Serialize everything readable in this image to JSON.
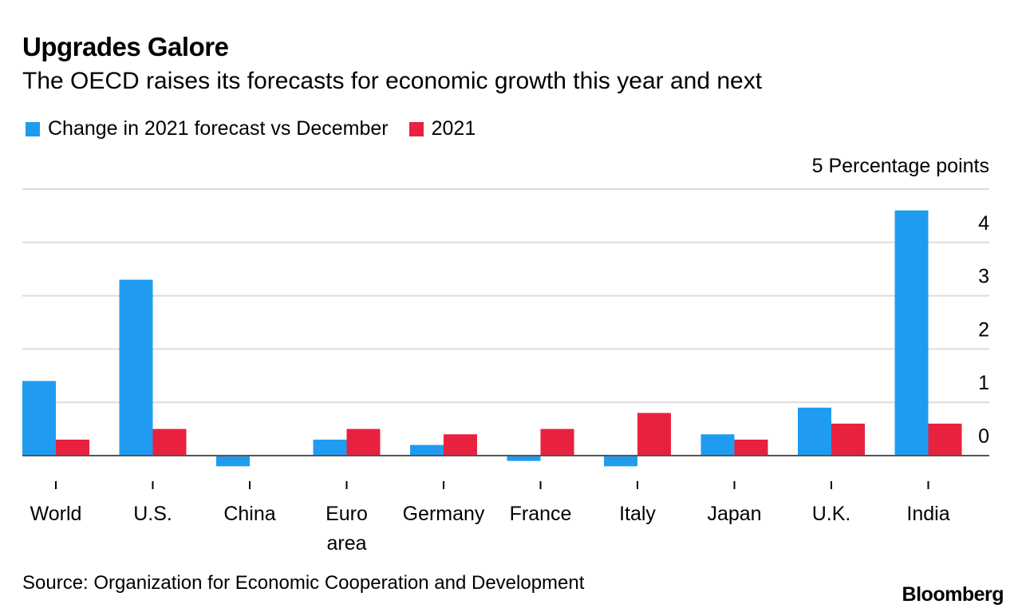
{
  "title": "Upgrades Galore",
  "subtitle": "The OECD raises its forecasts for economic growth this year and next",
  "legend": [
    {
      "label": "Change in 2021 forecast vs December",
      "color": "#1f9cf0"
    },
    {
      "label": "2021",
      "color": "#e8213f"
    }
  ],
  "source": "Source: Organization for Economic Cooperation and Development",
  "brand": "Bloomberg",
  "chart_data": {
    "type": "bar",
    "title": "Upgrades Galore",
    "subtitle": "The OECD raises its forecasts for economic growth this year and next",
    "unit_label": "5 Percentage points",
    "categories": [
      "World",
      "U.S.",
      "China",
      "Euro area",
      "Germany",
      "France",
      "Italy",
      "Japan",
      "U.K.",
      "India"
    ],
    "category_lines": [
      [
        "World"
      ],
      [
        "U.S."
      ],
      [
        "China"
      ],
      [
        "Euro",
        "area"
      ],
      [
        "Germany"
      ],
      [
        "France"
      ],
      [
        "Italy"
      ],
      [
        "Japan"
      ],
      [
        "U.K."
      ],
      [
        "India"
      ]
    ],
    "series": [
      {
        "name": "Change in 2021 forecast vs December",
        "color": "#1f9cf0",
        "values": [
          1.4,
          3.3,
          -0.2,
          0.3,
          0.2,
          -0.1,
          -0.2,
          0.4,
          0.9,
          4.6
        ]
      },
      {
        "name": "2021",
        "color": "#e8213f",
        "values": [
          0.3,
          0.5,
          0.0,
          0.5,
          0.4,
          0.5,
          0.8,
          0.3,
          0.6,
          0.6
        ]
      }
    ],
    "y_ticks": [
      0,
      1,
      2,
      3,
      4
    ],
    "ylim": [
      -0.3,
      5
    ],
    "grid": true,
    "axis_position": "right"
  }
}
